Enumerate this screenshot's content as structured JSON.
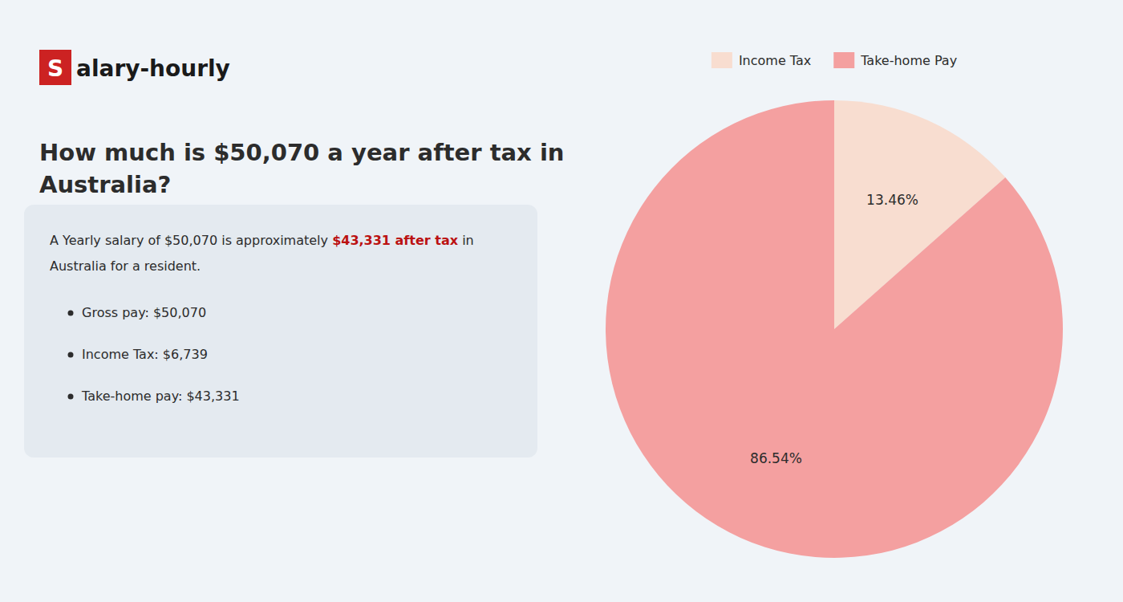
{
  "chart_data": {
    "type": "pie",
    "title": "How much is $50,070 a year after tax in\nAustralia?",
    "annotations": [
      "S",
      "alary-hourly",
      "A Yearly salary of $50,070 is approximately ",
      "$43,331 after tax",
      " in",
      "Australia for a resident.",
      "Gross pay: $50,070",
      "Income Tax: $6,739",
      "Take-home pay: $43,331"
    ],
    "categories": [
      "Income Tax",
      "Take-home Pay"
    ],
    "values": [
      13.46,
      86.54
    ],
    "value_labels": [
      "13.46%",
      "86.54%"
    ],
    "colors": [
      "#f8ddd0",
      "#f4a0a0"
    ],
    "data_labels": true,
    "legend": "top"
  }
}
